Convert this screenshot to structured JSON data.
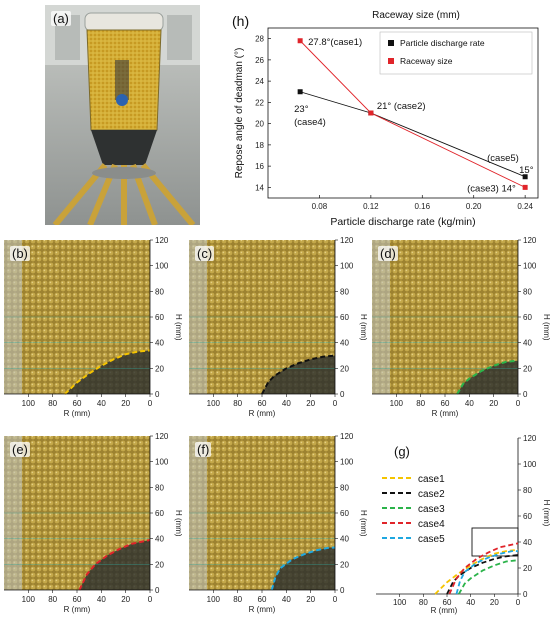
{
  "panel_labels": {
    "a": "(a)",
    "b": "(b)",
    "c": "(c)",
    "d": "(d)",
    "e": "(e)",
    "f": "(f)",
    "g": "(g)",
    "h": "(h)"
  },
  "colors": {
    "particle_discharge_rate": "#111111",
    "raceway_size": "#e0242a",
    "case1": "#f5c400",
    "case2": "#111111",
    "case3": "#2bb34a",
    "case4": "#e0242a",
    "case5": "#1fa7e0",
    "particles": "#b89a3a",
    "coal": "#2a2e2e"
  },
  "chart_data": [
    {
      "id": "h",
      "type": "scatter",
      "title": "Raceway size (mm)",
      "xlabel": "Particle discharge rate (kg/min)",
      "ylabel": "Repose angle of deadman (°)",
      "xlim": [
        0.04,
        0.25
      ],
      "ylim": [
        13,
        29
      ],
      "xticks": [
        "0.08",
        "0.12",
        "0.16",
        "0.20",
        "0.24"
      ],
      "xtick_values": [
        0.08,
        0.12,
        0.16,
        0.2,
        0.24
      ],
      "yticks": [
        "14",
        "16",
        "18",
        "20",
        "22",
        "24",
        "26",
        "28"
      ],
      "ytick_values": [
        14,
        16,
        18,
        20,
        22,
        24,
        26,
        28
      ],
      "legend": {
        "placement": "top-right",
        "entries": [
          "Particle discharge rate",
          "Raceway size"
        ]
      },
      "series": [
        {
          "name": "Particle discharge rate",
          "x": [
            0.065,
            0.12,
            0.24
          ],
          "y": [
            23,
            21,
            15
          ]
        },
        {
          "name": "Raceway size",
          "x": [
            0.065,
            0.12,
            0.24
          ],
          "y": [
            27.8,
            21,
            14
          ]
        }
      ],
      "annotations": [
        {
          "text": "27.8°(case1)",
          "x": 0.065,
          "y": 27.8
        },
        {
          "text": "23°",
          "x": 0.065,
          "y": 23
        },
        {
          "text": "(case4)",
          "x": 0.065,
          "y": 23
        },
        {
          "text": "21° (case2)",
          "x": 0.12,
          "y": 21
        },
        {
          "text": "(case5)",
          "x": 0.24,
          "y": 15
        },
        {
          "text": "15°",
          "x": 0.24,
          "y": 15
        },
        {
          "text": "(case3) 14°",
          "x": 0.24,
          "y": 14
        }
      ]
    },
    {
      "id": "g",
      "type": "line",
      "xlabel": "R (mm)",
      "ylabel": "H (mm)",
      "xlim": [
        120,
        0
      ],
      "ylim": [
        0,
        120
      ],
      "xticks": [
        "100",
        "80",
        "60",
        "40",
        "20",
        "0"
      ],
      "xtick_values": [
        100,
        80,
        60,
        40,
        20,
        0
      ],
      "yticks": [
        "0",
        "20",
        "40",
        "60",
        "80",
        "100",
        "120"
      ],
      "ytick_values": [
        0,
        20,
        40,
        60,
        80,
        100,
        120
      ],
      "legend": {
        "placement": "top-left",
        "entries": [
          "case1",
          "case2",
          "case3",
          "case4",
          "case5"
        ]
      },
      "series": [
        {
          "name": "case1",
          "x": [
            70,
            60,
            50,
            40,
            30,
            20,
            10,
            0
          ],
          "y": [
            0,
            9,
            16,
            22,
            27,
            31,
            33,
            34
          ]
        },
        {
          "name": "case2",
          "x": [
            60,
            55,
            50,
            40,
            30,
            20,
            10,
            0
          ],
          "y": [
            0,
            9,
            14,
            20,
            24,
            27,
            29,
            30
          ]
        },
        {
          "name": "case3",
          "x": [
            50,
            45,
            40,
            30,
            20,
            10,
            0
          ],
          "y": [
            0,
            8,
            12,
            18,
            22,
            25,
            26
          ]
        },
        {
          "name": "case4",
          "x": [
            58,
            52,
            45,
            35,
            25,
            15,
            5,
            0
          ],
          "y": [
            0,
            12,
            20,
            27,
            32,
            36,
            38,
            39
          ]
        },
        {
          "name": "case5",
          "x": [
            52,
            49,
            45,
            35,
            25,
            15,
            5,
            0
          ],
          "y": [
            0,
            10,
            17,
            24,
            28,
            31,
            33,
            33
          ]
        }
      ],
      "annotations": []
    }
  ],
  "photo_axes": {
    "r_label": "R (mm)",
    "h_label": "H (mm)",
    "r_ticks": [
      "100",
      "80",
      "60",
      "40",
      "20",
      "0"
    ],
    "h_ticks": [
      "0",
      "20",
      "40",
      "60",
      "80",
      "100",
      "120"
    ]
  }
}
